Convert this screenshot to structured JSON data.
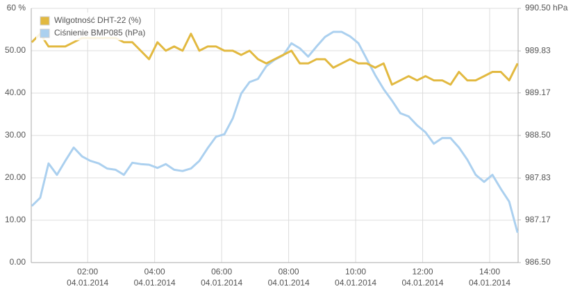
{
  "chart_data": {
    "type": "line",
    "x": [
      "04.01.2014 00:20",
      "04.01.2014 00:35",
      "04.01.2014 00:50",
      "04.01.2014 01:05",
      "04.01.2014 01:20",
      "04.01.2014 01:35",
      "04.01.2014 01:50",
      "04.01.2014 02:05",
      "04.01.2014 02:20",
      "04.01.2014 02:35",
      "04.01.2014 02:50",
      "04.01.2014 03:05",
      "04.01.2014 03:20",
      "04.01.2014 03:35",
      "04.01.2014 03:50",
      "04.01.2014 04:05",
      "04.01.2014 04:20",
      "04.01.2014 04:35",
      "04.01.2014 04:50",
      "04.01.2014 05:05",
      "04.01.2014 05:20",
      "04.01.2014 05:35",
      "04.01.2014 05:50",
      "04.01.2014 06:05",
      "04.01.2014 06:20",
      "04.01.2014 06:35",
      "04.01.2014 06:50",
      "04.01.2014 07:05",
      "04.01.2014 07:20",
      "04.01.2014 07:35",
      "04.01.2014 07:50",
      "04.01.2014 08:05",
      "04.01.2014 08:20",
      "04.01.2014 08:35",
      "04.01.2014 08:50",
      "04.01.2014 09:05",
      "04.01.2014 09:20",
      "04.01.2014 09:35",
      "04.01.2014 09:50",
      "04.01.2014 10:05",
      "04.01.2014 10:20",
      "04.01.2014 10:35",
      "04.01.2014 10:50",
      "04.01.2014 11:05",
      "04.01.2014 11:20",
      "04.01.2014 11:35",
      "04.01.2014 11:50",
      "04.01.2014 12:05",
      "04.01.2014 12:20",
      "04.01.2014 12:35",
      "04.01.2014 12:50",
      "04.01.2014 13:05",
      "04.01.2014 13:20",
      "04.01.2014 13:35",
      "04.01.2014 13:50",
      "04.01.2014 14:05",
      "04.01.2014 14:20",
      "04.01.2014 14:35",
      "04.01.2014 14:50"
    ],
    "series": [
      {
        "name": "Wilgotność DHT-22 (%)",
        "color": "#e2b940",
        "values": [
          52,
          54,
          51,
          51,
          51,
          52,
          53,
          53,
          53,
          53,
          53,
          52,
          52,
          50,
          48,
          52,
          50,
          51,
          50,
          54,
          50,
          51,
          51,
          50,
          50,
          49,
          50,
          48,
          47,
          48,
          49,
          50,
          47,
          47,
          48,
          48,
          46,
          47,
          48,
          47,
          47,
          46,
          47,
          42,
          43,
          44,
          43,
          44,
          43,
          43,
          42,
          45,
          43,
          43,
          44,
          45,
          45,
          43,
          47
        ]
      },
      {
        "name": "Ciśnienie BMP085 (hPa)",
        "color": "#abd0ef",
        "axis": "y2",
        "values": [
          987.39,
          987.52,
          988.06,
          987.88,
          988.1,
          988.31,
          988.17,
          988.1,
          988.06,
          987.98,
          987.96,
          987.88,
          988.07,
          988.05,
          988.04,
          987.99,
          988.05,
          987.96,
          987.94,
          987.98,
          988.1,
          988.3,
          988.48,
          988.52,
          988.77,
          989.16,
          989.34,
          989.39,
          989.59,
          989.69,
          989.76,
          989.95,
          989.87,
          989.74,
          989.9,
          990.05,
          990.13,
          990.13,
          990.06,
          989.95,
          989.7,
          989.45,
          989.23,
          989.05,
          988.85,
          988.8,
          988.66,
          988.55,
          988.37,
          988.46,
          988.46,
          988.31,
          988.12,
          987.88,
          987.77,
          987.88,
          987.66,
          987.46,
          986.97
        ]
      }
    ],
    "xlim": [
      "04.01.2014 00:19",
      "04.01.2014 14:51"
    ],
    "xticks": [
      {
        "value": "04.01.2014 02:00",
        "label": "02:00",
        "date": "04.01.2014"
      },
      {
        "value": "04.01.2014 04:00",
        "label": "04:00",
        "date": "04.01.2014"
      },
      {
        "value": "04.01.2014 06:00",
        "label": "06:00",
        "date": "04.01.2014"
      },
      {
        "value": "04.01.2014 08:00",
        "label": "08:00",
        "date": "04.01.2014"
      },
      {
        "value": "04.01.2014 10:00",
        "label": "10:00",
        "date": "04.01.2014"
      },
      {
        "value": "04.01.2014 12:00",
        "label": "12:00",
        "date": "04.01.2014"
      },
      {
        "value": "04.01.2014 14:00",
        "label": "14:00",
        "date": "04.01.2014"
      }
    ],
    "ylim": [
      0,
      60
    ],
    "yticks": [
      {
        "value": 0,
        "label": "0.00"
      },
      {
        "value": 10,
        "label": "10.00"
      },
      {
        "value": 20,
        "label": "20.00"
      },
      {
        "value": 30,
        "label": "30.00"
      },
      {
        "value": 40,
        "label": "40.00"
      },
      {
        "value": 50,
        "label": "50.00"
      },
      {
        "value": 60,
        "label": "60 %"
      }
    ],
    "y2lim": [
      986.5,
      990.5
    ],
    "y2ticks": [
      {
        "value": 986.5,
        "label": "986.50"
      },
      {
        "value": 987.17,
        "label": "987.17"
      },
      {
        "value": 987.83,
        "label": "987.83"
      },
      {
        "value": 988.5,
        "label": "988.50"
      },
      {
        "value": 989.17,
        "label": "989.17"
      },
      {
        "value": 989.83,
        "label": "989.83"
      },
      {
        "value": 990.5,
        "label": "990.50 hPa"
      }
    ],
    "grid": true
  }
}
